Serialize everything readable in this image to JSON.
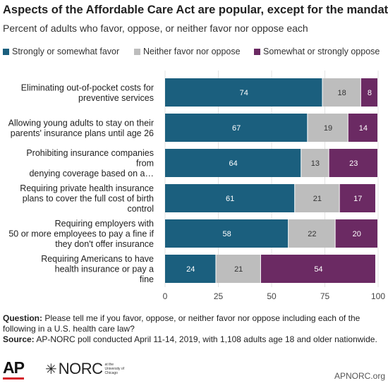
{
  "chart_data": {
    "type": "bar",
    "orientation": "horizontal",
    "stacked": true,
    "title": "Aspects of the Affordable Care Act are popular, except for the mandate",
    "subtitle": "Percent of adults who favor, oppose, or neither favor nor oppose each",
    "categories": [
      [
        "Eliminating out-of-pocket costs for",
        "preventive services"
      ],
      [
        "Allowing young adults to stay on their",
        "parents' insurance plans until age 26"
      ],
      [
        "Prohibiting insurance companies",
        "from",
        "denying coverage based on a…"
      ],
      [
        "Requiring private health insurance",
        "plans to cover the full cost of birth",
        "control"
      ],
      [
        "Requiring employers with",
        "50 or more employees to pay a fine if",
        "they don't offer insurance"
      ],
      [
        "Requiring Americans to have",
        "health insurance or pay a",
        "fine"
      ]
    ],
    "series": [
      {
        "name": "Strongly or somewhat favor",
        "color": "#1b5f7e",
        "values": [
          74,
          67,
          64,
          61,
          58,
          24
        ]
      },
      {
        "name": "Neither favor nor oppose",
        "color": "#bdbdbd",
        "values": [
          18,
          19,
          13,
          21,
          22,
          21
        ]
      },
      {
        "name": "Somewhat or strongly oppose",
        "color": "#6b2a63",
        "values": [
          8,
          14,
          23,
          17,
          20,
          54
        ]
      }
    ],
    "xlim": [
      0,
      100
    ],
    "xticks": [
      "0",
      "25",
      "50",
      "75",
      "100"
    ],
    "legend_position": "top"
  },
  "notes": {
    "question_label": "Question:",
    "question_text": "Please tell me if you favor, oppose, or neither favor nor oppose including each of the following in a U.S. health care law?",
    "source_label": "Source:",
    "source_text": "AP-NORC poll conducted April 11-14, 2019, with 1,108 adults age 18 and older nationwide."
  },
  "footer": {
    "ap_logo": "AP",
    "norc_logo": "NORC",
    "norc_sub": "at the University of Chicago",
    "site": "APNORC.org"
  }
}
